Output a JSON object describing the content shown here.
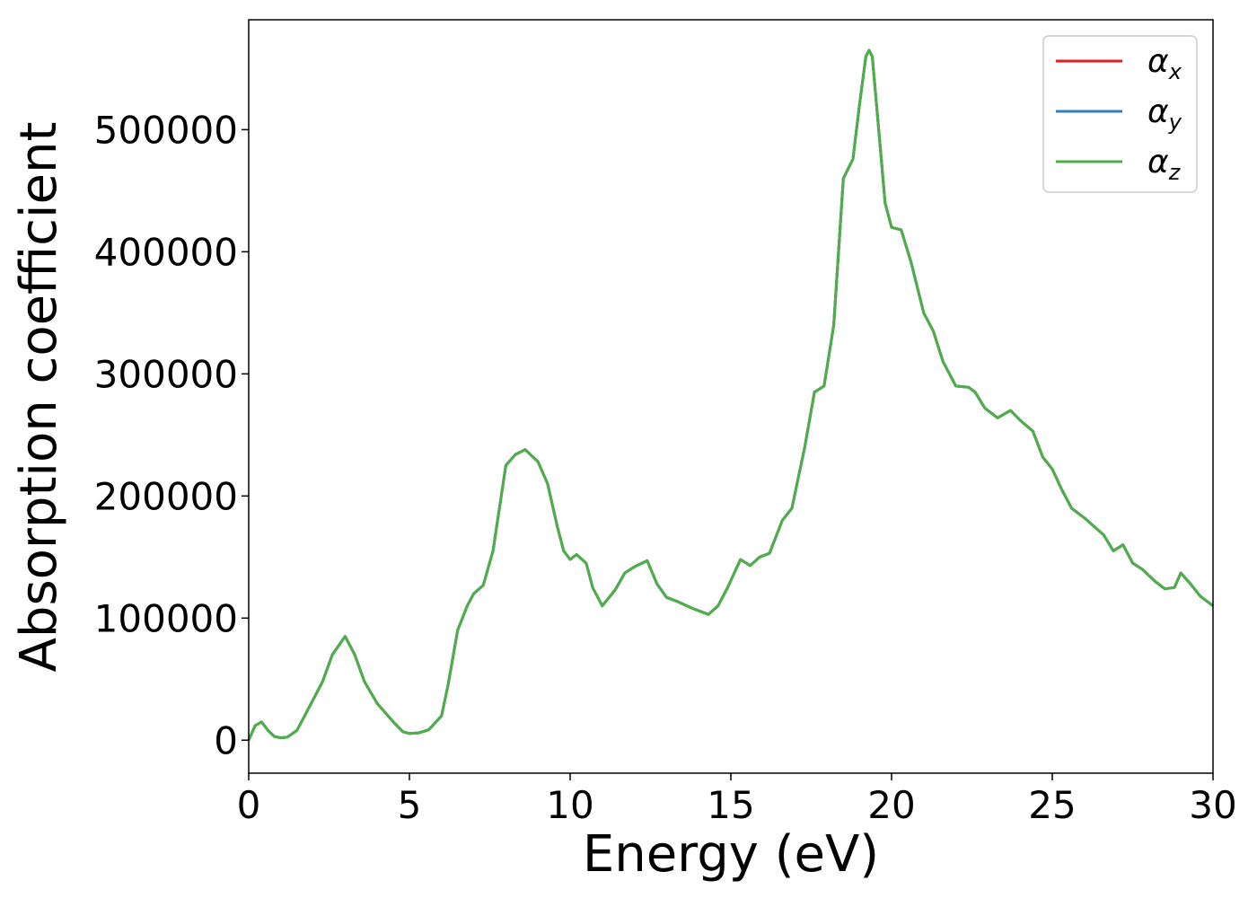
{
  "chart_data": {
    "type": "line",
    "xlabel": "Energy (eV)",
    "ylabel": "Absorption coefficient",
    "xlim": [
      0,
      30
    ],
    "ylim": [
      -27000,
      590000
    ],
    "xticks": [
      0,
      5,
      10,
      15,
      20,
      25,
      30
    ],
    "xtick_labels": [
      "0",
      "5",
      "10",
      "15",
      "20",
      "25",
      "30"
    ],
    "yticks": [
      0,
      100000,
      200000,
      300000,
      400000,
      500000
    ],
    "ytick_labels": [
      "0",
      "100000",
      "200000",
      "300000",
      "400000",
      "500000"
    ],
    "grid": false,
    "legend_position": "top-right",
    "x": [
      0,
      0.2,
      0.4,
      0.6,
      0.8,
      1.0,
      1.2,
      1.5,
      1.7,
      2.0,
      2.3,
      2.6,
      3.0,
      3.3,
      3.6,
      4.0,
      4.5,
      4.8,
      5.0,
      5.3,
      5.6,
      6.0,
      6.2,
      6.5,
      6.8,
      7.0,
      7.3,
      7.6,
      8.0,
      8.3,
      8.6,
      9.0,
      9.3,
      9.6,
      9.8,
      10.0,
      10.2,
      10.5,
      10.7,
      11.0,
      11.4,
      11.7,
      12.0,
      12.4,
      12.7,
      13.0,
      13.3,
      13.8,
      14.3,
      14.6,
      14.9,
      15.3,
      15.6,
      15.9,
      16.2,
      16.6,
      16.9,
      17.3,
      17.6,
      17.9,
      18.2,
      18.5,
      18.8,
      19.0,
      19.2,
      19.3,
      19.4,
      19.6,
      19.8,
      20.0,
      20.3,
      20.6,
      21.0,
      21.3,
      21.6,
      22.0,
      22.4,
      22.6,
      22.9,
      23.3,
      23.7,
      24.0,
      24.4,
      24.7,
      25.0,
      25.3,
      25.6,
      26.0,
      26.3,
      26.6,
      26.9,
      27.2,
      27.5,
      27.8,
      28.2,
      28.5,
      28.8,
      29.0,
      29.3,
      29.6,
      30.0
    ],
    "series": [
      {
        "name": "α_x",
        "color": "#e41a1c",
        "values": [
          0,
          12000,
          15000,
          8000,
          3000,
          2000,
          2500,
          8000,
          18000,
          33000,
          48000,
          70000,
          85000,
          70000,
          48000,
          30000,
          15000,
          7000,
          5500,
          6000,
          8500,
          20000,
          45000,
          90000,
          110000,
          120000,
          127000,
          155000,
          225000,
          234000,
          238000,
          228000,
          210000,
          175000,
          155000,
          148000,
          152000,
          145000,
          125000,
          110000,
          123000,
          137000,
          142000,
          147000,
          128000,
          117000,
          114000,
          108000,
          103000,
          110000,
          125000,
          148000,
          143000,
          150000,
          153000,
          180000,
          190000,
          240000,
          285000,
          290000,
          340000,
          460000,
          476000,
          520000,
          560000,
          565000,
          560000,
          500000,
          440000,
          420000,
          418000,
          392000,
          350000,
          335000,
          310000,
          290000,
          289000,
          285000,
          272000,
          264000,
          270000,
          262000,
          253000,
          232000,
          222000,
          205000,
          190000,
          182000,
          175000,
          168000,
          155000,
          160000,
          145000,
          140000,
          130000,
          124000,
          125000,
          137000,
          128000,
          118000,
          110000
        ]
      },
      {
        "name": "α_y",
        "color": "#377eb8",
        "values": [
          0,
          12000,
          15000,
          8000,
          3000,
          2000,
          2500,
          8000,
          18000,
          33000,
          48000,
          70000,
          85000,
          70000,
          48000,
          30000,
          15000,
          7000,
          5500,
          6000,
          8500,
          20000,
          45000,
          90000,
          110000,
          120000,
          127000,
          155000,
          225000,
          234000,
          238000,
          228000,
          210000,
          175000,
          155000,
          148000,
          152000,
          145000,
          125000,
          110000,
          123000,
          137000,
          142000,
          147000,
          128000,
          117000,
          114000,
          108000,
          103000,
          110000,
          125000,
          148000,
          143000,
          150000,
          153000,
          180000,
          190000,
          240000,
          285000,
          290000,
          340000,
          460000,
          476000,
          520000,
          560000,
          565000,
          560000,
          500000,
          440000,
          420000,
          418000,
          392000,
          350000,
          335000,
          310000,
          290000,
          289000,
          285000,
          272000,
          264000,
          270000,
          262000,
          253000,
          232000,
          222000,
          205000,
          190000,
          182000,
          175000,
          168000,
          155000,
          160000,
          145000,
          140000,
          130000,
          124000,
          125000,
          137000,
          128000,
          118000,
          110000
        ]
      },
      {
        "name": "α_z",
        "color": "#4daf4a",
        "values": [
          0,
          12000,
          15000,
          8000,
          3000,
          2000,
          2500,
          8000,
          18000,
          33000,
          48000,
          70000,
          85000,
          70000,
          48000,
          30000,
          15000,
          7000,
          5500,
          6000,
          8500,
          20000,
          45000,
          90000,
          110000,
          120000,
          127000,
          155000,
          225000,
          234000,
          238000,
          228000,
          210000,
          175000,
          155000,
          148000,
          152000,
          145000,
          125000,
          110000,
          123000,
          137000,
          142000,
          147000,
          128000,
          117000,
          114000,
          108000,
          103000,
          110000,
          125000,
          148000,
          143000,
          150000,
          153000,
          180000,
          190000,
          240000,
          285000,
          290000,
          340000,
          460000,
          476000,
          520000,
          560000,
          565000,
          560000,
          500000,
          440000,
          420000,
          418000,
          392000,
          350000,
          335000,
          310000,
          290000,
          289000,
          285000,
          272000,
          264000,
          270000,
          262000,
          253000,
          232000,
          222000,
          205000,
          190000,
          182000,
          175000,
          168000,
          155000,
          160000,
          145000,
          140000,
          130000,
          124000,
          125000,
          137000,
          128000,
          118000,
          110000
        ]
      }
    ]
  }
}
